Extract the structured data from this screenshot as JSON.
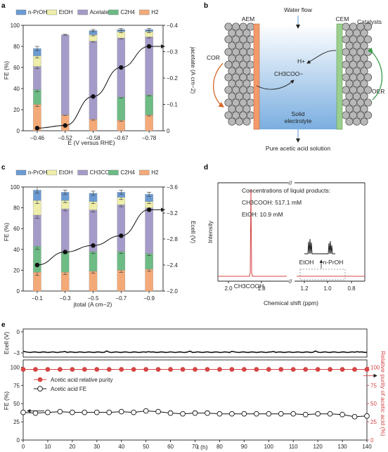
{
  "panel_letters": {
    "a": "a",
    "b": "b",
    "c": "c",
    "d": "d",
    "e": "e"
  },
  "colors": {
    "npropanol": "#6b9bd2",
    "etoh": "#eeeeaa",
    "acetate": "#a59bc8",
    "c2h4": "#6dbb85",
    "h2": "#f4aa78",
    "red": "#d64545",
    "black": "#111111",
    "blue": "#9fc3ea",
    "aem": "#f39a6b",
    "cem": "#9bcf8f"
  },
  "chart_data": [
    {
      "type": "bar",
      "panel": "a",
      "legend": [
        "n-PrOH",
        "EtOH",
        "Acetate",
        "C2H4",
        "H2"
      ],
      "categories": [
        "−0.46",
        "−0.52",
        "−0.58",
        "−0.67",
        "−0.78"
      ],
      "xlabel": "E (V versus RHE)",
      "ylabel": "FE (%)",
      "ylim": [
        0,
        100
      ],
      "yticks": [
        "0",
        "20",
        "40",
        "60",
        "80",
        "100"
      ],
      "series": [
        {
          "name": "H2",
          "values": [
            25,
            15,
            11,
            10,
            15
          ]
        },
        {
          "name": "C2H4",
          "values": [
            14,
            0,
            0,
            22,
            19
          ]
        },
        {
          "name": "Acetate",
          "values": [
            22,
            76,
            74,
            56,
            55
          ]
        },
        {
          "name": "EtOH",
          "values": [
            10,
            0,
            6,
            6,
            5
          ]
        },
        {
          "name": "n-PrOH",
          "values": [
            7,
            0,
            4,
            2,
            2
          ]
        }
      ],
      "errors": [
        2,
        0.5,
        1,
        1,
        1
      ],
      "y2label": "jacetate (A cm−2)",
      "y2lim": [
        0,
        -0.4
      ],
      "y2ticks": [
        "0",
        "−0.1",
        "−0.2",
        "−0.3",
        "−0.4"
      ],
      "y2values": [
        -0.01,
        -0.02,
        -0.13,
        -0.24,
        -0.32
      ]
    },
    {
      "type": "bar",
      "panel": "c",
      "legend": [
        "n-PrOH",
        "EtOH",
        "CH3COOH",
        "C2H4",
        "H2"
      ],
      "categories": [
        "−0.1",
        "−0.3",
        "−0.5",
        "−0.7",
        "−0.9"
      ],
      "xlabel": "jtotal (A cm−2)",
      "ylabel": "FE (%)",
      "ylim": [
        0,
        100
      ],
      "yticks": [
        "0",
        "20",
        "40",
        "60",
        "80",
        "100"
      ],
      "series": [
        {
          "name": "H2",
          "values": [
            18,
            18,
            19,
            20,
            21
          ]
        },
        {
          "name": "C2H4",
          "values": [
            25,
            20,
            19,
            18,
            15
          ]
        },
        {
          "name": "CH3COOH",
          "values": [
            30,
            41,
            40,
            45,
            44
          ]
        },
        {
          "name": "EtOH",
          "values": [
            14,
            8,
            8,
            7,
            6
          ]
        },
        {
          "name": "n-PrOH",
          "values": [
            10,
            8,
            8,
            5,
            7
          ]
        }
      ],
      "errors": [
        3,
        2,
        2,
        2,
        2
      ],
      "y2label": "Ecell (V)",
      "y2lim": [
        -2.0,
        -3.6
      ],
      "y2ticks": [
        "−2.0",
        "−2.4",
        "−2.8",
        "−3.2",
        "−3.6"
      ],
      "y2values": [
        -2.4,
        -2.6,
        -2.7,
        -2.85,
        -3.25
      ]
    },
    {
      "type": "line",
      "panel": "d",
      "xlabel": "Chemical shift (ppm)",
      "ylabel": "Intensity",
      "xticks": [
        "2.0",
        "1.8",
        "1.2",
        "1.0",
        "0.8"
      ],
      "annotations": [
        "Concentrations of liquid products:",
        "CH3COOH: 517.1 mM",
        "EtOH: 10.9 mM",
        "EtOH",
        "n-PrOH",
        "CH3COOH"
      ]
    },
    {
      "type": "line",
      "panel": "e",
      "xlabel": "t (h)",
      "xlim": [
        0,
        140
      ],
      "xticks": [
        "0",
        "10",
        "20",
        "30",
        "40",
        "50",
        "60",
        "70",
        "80",
        "90",
        "100",
        "110",
        "120",
        "130",
        "140"
      ],
      "top": {
        "ylabel": "Ecell (V)",
        "yticks": [
          "0",
          "−3"
        ],
        "value": -2.9
      },
      "ylabel": "FE (%)",
      "yticks": [
        "0",
        "25",
        "50",
        "75",
        "100"
      ],
      "y2label": "Relative purity of acetic acid (%)",
      "y2ticks": [
        "0",
        "25",
        "50",
        "75",
        "100"
      ],
      "series": [
        {
          "name": "Acetic acid relative purity",
          "x": [
            0,
            5,
            10,
            15,
            20,
            25,
            30,
            35,
            40,
            45,
            50,
            55,
            60,
            65,
            70,
            75,
            80,
            85,
            90,
            95,
            100,
            105,
            110,
            115,
            120,
            125,
            130,
            135,
            140
          ],
          "values": [
            97,
            97,
            97,
            97,
            97,
            97,
            97,
            97,
            97,
            97,
            97,
            97,
            97,
            97,
            97,
            97,
            97,
            97,
            97,
            97,
            97,
            97,
            97,
            97,
            97,
            97,
            97,
            97,
            97
          ]
        },
        {
          "name": "Acetic acid FE",
          "x": [
            0,
            5,
            10,
            15,
            20,
            25,
            30,
            35,
            40,
            45,
            50,
            55,
            60,
            65,
            70,
            75,
            80,
            85,
            90,
            95,
            100,
            105,
            110,
            115,
            120,
            125,
            130,
            135,
            140
          ],
          "values": [
            38,
            37,
            38,
            39,
            38,
            38,
            38,
            38,
            39,
            38,
            40,
            39,
            37,
            36,
            37,
            37,
            36,
            36,
            36,
            36,
            36,
            36,
            36,
            35,
            36,
            36,
            35,
            32,
            33
          ]
        }
      ]
    }
  ],
  "panel_b": {
    "water_flow": "Water flow",
    "aem": "AEM",
    "cem": "CEM",
    "catalysts": "Catalysts",
    "cor": "COR",
    "oer": "OER",
    "hplus": "H+",
    "acetate_ion": "CH3COO−",
    "electrolyte": [
      "Solid",
      "electrolyte"
    ],
    "bottom": "Pure acetic acid solution"
  }
}
